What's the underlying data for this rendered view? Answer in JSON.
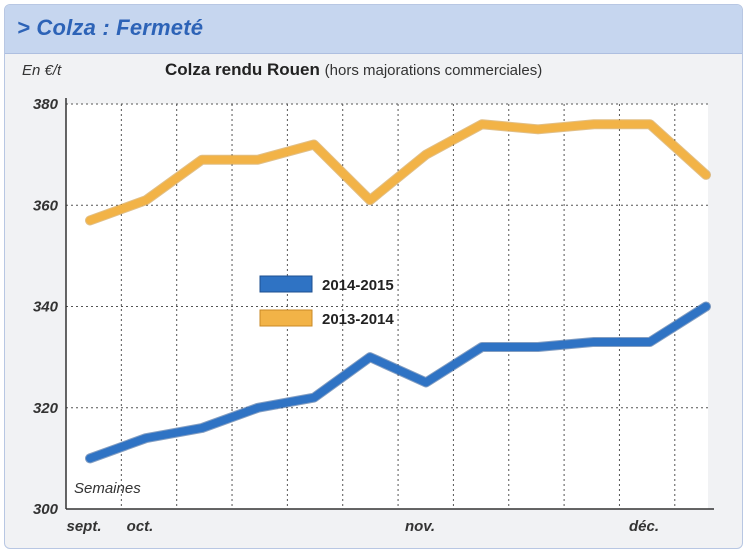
{
  "banner": {
    "title": "> Colza : Fermeté"
  },
  "chart_data": {
    "type": "line",
    "title": "Colza rendu Rouen",
    "subtitle": "(hors majorations commerciales)",
    "ylabel": "En €/t",
    "xlabel": "Semaines",
    "ylim": [
      300,
      380
    ],
    "yticks": [
      300,
      320,
      340,
      360,
      380
    ],
    "x_month_labels": [
      {
        "label": "sept.",
        "week": 0
      },
      {
        "label": "oct.",
        "week": 1
      },
      {
        "label": "nov.",
        "week": 6
      },
      {
        "label": "déc.",
        "week": 10
      }
    ],
    "x": [
      1,
      2,
      3,
      4,
      5,
      6,
      7,
      8,
      9,
      10,
      11,
      12
    ],
    "series": [
      {
        "name": "2014-2015",
        "color": "#2f73c4",
        "values": [
          310,
          314,
          316,
          320,
          322,
          330,
          325,
          332,
          332,
          333,
          333,
          340
        ]
      },
      {
        "name": "2013-2014",
        "color": "#f2b347",
        "values": [
          357,
          361,
          369,
          369,
          372,
          361,
          370,
          376,
          375,
          376,
          376,
          366
        ]
      }
    ],
    "legend": "center",
    "grid": true
  }
}
